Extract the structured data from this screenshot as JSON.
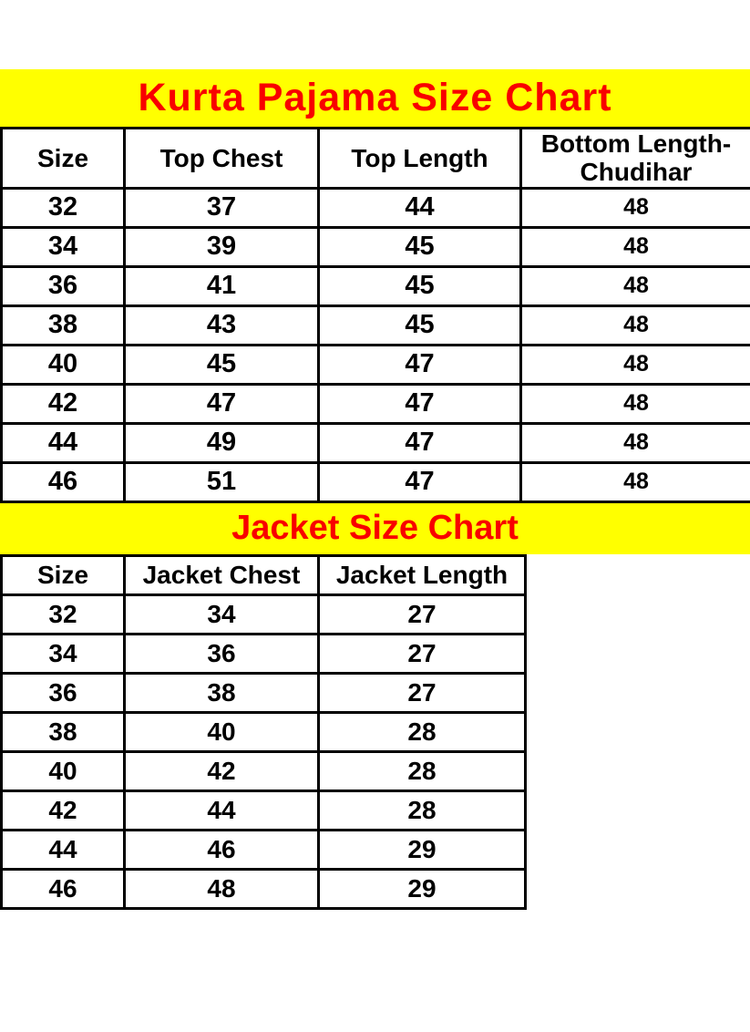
{
  "colors": {
    "page_bg": "#ffffff",
    "banner_bg": "#ffff00",
    "banner_text": "#f80000",
    "table_border": "#000000",
    "cell_text": "#000000"
  },
  "chart_data": [
    {
      "type": "table",
      "title": "Kurta Pajama Size Chart",
      "columns": [
        "Size",
        "Top Chest",
        "Top Length",
        "Bottom Length-Chudihar"
      ],
      "rows": [
        [
          32,
          37,
          44,
          48
        ],
        [
          34,
          39,
          45,
          48
        ],
        [
          36,
          41,
          45,
          48
        ],
        [
          38,
          43,
          45,
          48
        ],
        [
          40,
          45,
          47,
          48
        ],
        [
          42,
          47,
          47,
          48
        ],
        [
          44,
          49,
          47,
          48
        ],
        [
          46,
          51,
          47,
          48
        ]
      ]
    },
    {
      "type": "table",
      "title": "Jacket Size Chart",
      "columns": [
        "Size",
        "Jacket Chest",
        "Jacket Length"
      ],
      "rows": [
        [
          32,
          34,
          27
        ],
        [
          34,
          36,
          27
        ],
        [
          36,
          38,
          27
        ],
        [
          38,
          40,
          28
        ],
        [
          40,
          42,
          28
        ],
        [
          42,
          44,
          28
        ],
        [
          44,
          46,
          29
        ],
        [
          46,
          48,
          29
        ]
      ]
    }
  ]
}
